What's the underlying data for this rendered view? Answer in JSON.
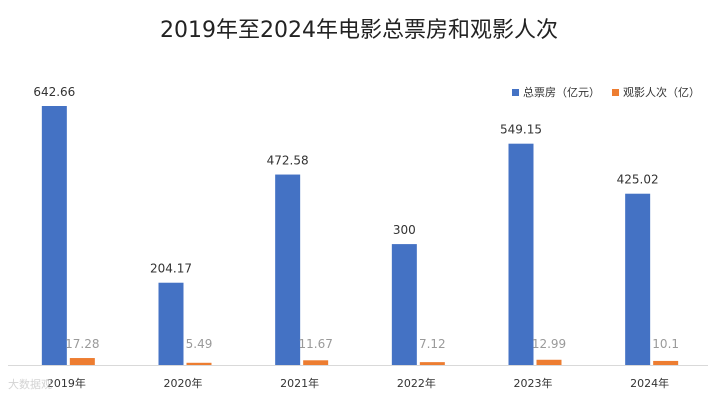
{
  "chart_data": {
    "type": "bar",
    "title": "2019年至2024年电影总票房和观影人次",
    "categories": [
      "2019年",
      "2020年",
      "2021年",
      "2022年",
      "2023年",
      "2024年"
    ],
    "series": [
      {
        "name": "总票房（亿元）",
        "values": [
          642.66,
          204.17,
          472.58,
          300,
          549.15,
          425.02
        ],
        "labels": [
          "642.66",
          "204.17",
          "472.58",
          "300",
          "549.15",
          "425.02"
        ],
        "color": "#4472C4"
      },
      {
        "name": "观影人次（亿）",
        "values": [
          17.28,
          5.49,
          11.67,
          7.12,
          12.99,
          10.1
        ],
        "labels": [
          "17.28",
          "5.49",
          "11.67",
          "7.12",
          "12.99",
          "10.1"
        ],
        "color": "#ED7D31"
      }
    ],
    "ylim": [
      0,
      700
    ],
    "grid": false,
    "legend_position": "top-right"
  },
  "watermark": "大数据观"
}
